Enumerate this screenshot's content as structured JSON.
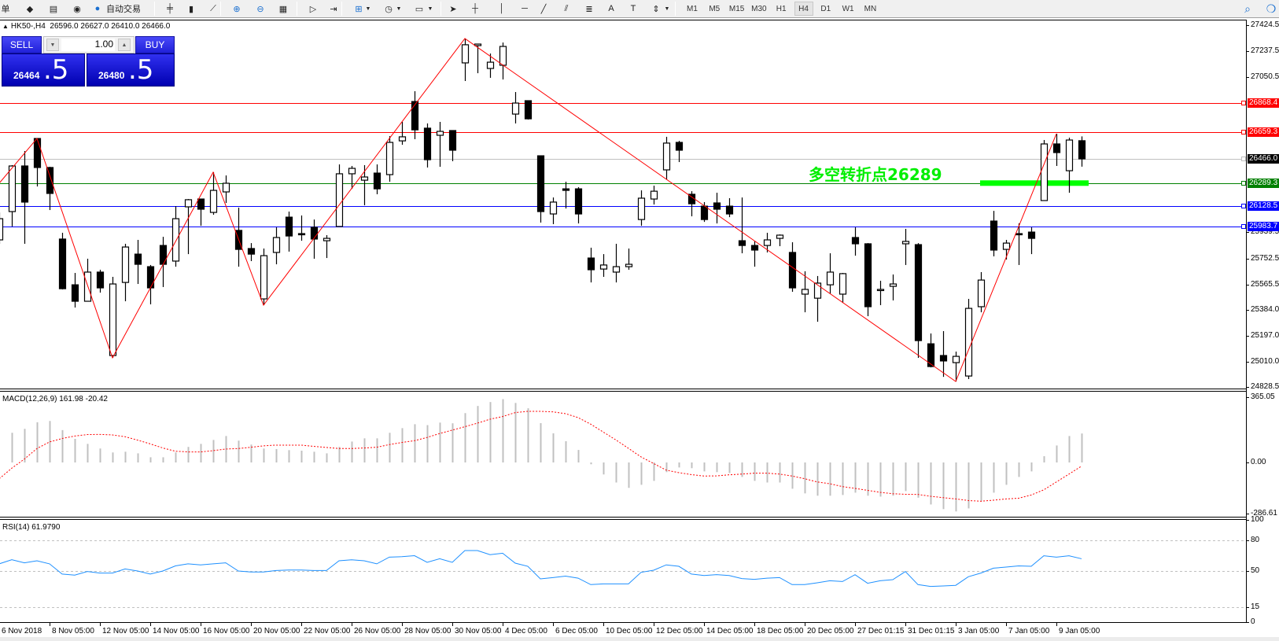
{
  "toolbar": {
    "new_order_label": "单",
    "autotrade_label": "自动交易",
    "timeframes": [
      "M1",
      "M5",
      "M15",
      "M30",
      "H1",
      "H4",
      "D1",
      "W1",
      "MN"
    ],
    "active_timeframe": "H4",
    "icons": [
      "orders-icon",
      "market-watch-icon",
      "navigator-icon",
      "signal-icon",
      "autotrade-icon",
      "bar-chart-icon",
      "candlestick-icon",
      "line-chart-icon",
      "zoom-in-icon",
      "zoom-out-icon",
      "tile-windows-icon",
      "autoscroll-icon",
      "chart-shift-icon",
      "indicators-icon",
      "periods-clock-icon",
      "templates-icon",
      "cursor-icon",
      "crosshair-icon",
      "vertical-line-icon",
      "horizontal-line-icon",
      "trendline-icon",
      "equidistant-channel-icon",
      "fibonacci-icon",
      "text-icon",
      "text-label-icon",
      "arrows-icon",
      "search-icon",
      "chat-icon"
    ]
  },
  "chart_header": {
    "symbol": "HK50-,H4",
    "ohlc": "26596.0 26627.0 26410.0 26466.0"
  },
  "trade_panel": {
    "sell_label": "SELL",
    "buy_label": "BUY",
    "lot": "1.00",
    "sell_price_main": "26464",
    "sell_price_frac": ".5",
    "buy_price_main": "26480",
    "buy_price_frac": ".5",
    "color": "#2020d8"
  },
  "annotation": {
    "text": "多空转折点26289",
    "color": "#00ee00",
    "marker_price": 26289.3,
    "marker_from_index": 78,
    "marker_to_index": 86
  },
  "chart_data": [
    {
      "type": "candlestick",
      "title": "HK50-,H4",
      "ylim": [
        24808,
        27447
      ],
      "y_ticks": [
        "27424.5",
        "27237.5",
        "27050.5",
        "25939.5",
        "25752.5",
        "25565.5",
        "25384.0",
        "25197.0",
        "25010.0",
        "24828.5"
      ],
      "x_tick_labels": [
        {
          "index": 0,
          "label": "6 Nov 2018"
        },
        {
          "index": 4,
          "label": "8 Nov 05:00"
        },
        {
          "index": 8,
          "label": "12 Nov 05:00"
        },
        {
          "index": 12,
          "label": "14 Nov 05:00"
        },
        {
          "index": 16,
          "label": "16 Nov 05:00"
        },
        {
          "index": 20,
          "label": "20 Nov 05:00"
        },
        {
          "index": 24,
          "label": "22 Nov 05:00"
        },
        {
          "index": 28,
          "label": "26 Nov 05:00"
        },
        {
          "index": 32,
          "label": "28 Nov 05:00"
        },
        {
          "index": 36,
          "label": "30 Nov 05:00"
        },
        {
          "index": 40,
          "label": "4 Dec 05:00"
        },
        {
          "index": 44,
          "label": "6 Dec 05:00"
        },
        {
          "index": 48,
          "label": "10 Dec 05:00"
        },
        {
          "index": 52,
          "label": "12 Dec 05:00"
        },
        {
          "index": 56,
          "label": "14 Dec 05:00"
        },
        {
          "index": 60,
          "label": "18 Dec 05:00"
        },
        {
          "index": 64,
          "label": "20 Dec 05:00"
        },
        {
          "index": 68,
          "label": "27 Dec 01:15"
        },
        {
          "index": 72,
          "label": "31 Dec 01:15"
        },
        {
          "index": 76,
          "label": "3 Jan 05:00"
        },
        {
          "index": 80,
          "label": "7 Jan 05:00"
        },
        {
          "index": 84,
          "label": "9 Jan 05:00"
        }
      ],
      "ohlc": [
        [
          25885,
          26082,
          25857,
          26037
        ],
        [
          26088,
          26421,
          25981,
          26415
        ],
        [
          26415,
          26522,
          25857,
          26156
        ],
        [
          26612,
          26612,
          26268,
          26404
        ],
        [
          26404,
          26409,
          26099,
          26218
        ],
        [
          25891,
          25936,
          25530,
          25535
        ],
        [
          25563,
          25648,
          25400,
          25445
        ],
        [
          25445,
          25750,
          25445,
          25654
        ],
        [
          25654,
          25671,
          25507,
          25541
        ],
        [
          25056,
          25620,
          25040,
          25569
        ],
        [
          25580,
          25857,
          25445,
          25834
        ],
        [
          25783,
          25885,
          25569,
          25710
        ],
        [
          25693,
          25705,
          25423,
          25541
        ],
        [
          25845,
          25907,
          25547,
          25710
        ],
        [
          25733,
          26127,
          25693,
          26037
        ],
        [
          26122,
          26178,
          25783,
          26173
        ],
        [
          26178,
          26178,
          25986,
          26105
        ],
        [
          26082,
          26370,
          26065,
          26240
        ],
        [
          26229,
          26347,
          26150,
          26291
        ],
        [
          25953,
          26116,
          25693,
          25817
        ],
        [
          25823,
          25862,
          25733,
          25783
        ],
        [
          25462,
          25823,
          25417,
          25772
        ],
        [
          25795,
          25975,
          25710,
          25902
        ],
        [
          26048,
          26088,
          25801,
          25913
        ],
        [
          25930,
          26060,
          25879,
          25924
        ],
        [
          25975,
          26031,
          25750,
          25891
        ],
        [
          25879,
          25919,
          25755,
          25896
        ],
        [
          25981,
          26426,
          25981,
          26359
        ],
        [
          26359,
          26415,
          26251,
          26398
        ],
        [
          26313,
          26421,
          26133,
          26336
        ],
        [
          26364,
          26426,
          26212,
          26251
        ],
        [
          26353,
          26629,
          26302,
          26584
        ],
        [
          26595,
          26731,
          26567,
          26624
        ],
        [
          26877,
          26951,
          26607,
          26674
        ],
        [
          26686,
          26720,
          26404,
          26460
        ],
        [
          26635,
          26731,
          26409,
          26663
        ],
        [
          26669,
          26669,
          26449,
          26528
        ],
        [
          27154,
          27329,
          27024,
          27284
        ],
        [
          27278,
          27289,
          27080,
          27289
        ],
        [
          27114,
          27221,
          27047,
          27159
        ],
        [
          27137,
          27300,
          27035,
          27272
        ],
        [
          26787,
          26945,
          26720,
          26866
        ],
        [
          26883,
          26883,
          26748,
          26753
        ],
        [
          26488,
          26488,
          26009,
          26088
        ],
        [
          26071,
          26189,
          25998,
          26156
        ],
        [
          26251,
          26302,
          26110,
          26240
        ],
        [
          26251,
          26263,
          26003,
          26071
        ],
        [
          25755,
          25829,
          25580,
          25671
        ],
        [
          25676,
          25783,
          25620,
          25705
        ],
        [
          25654,
          25857,
          25580,
          25693
        ],
        [
          25693,
          25823,
          25671,
          25710
        ],
        [
          26031,
          26240,
          25986,
          26184
        ],
        [
          26178,
          26274,
          26139,
          26234
        ],
        [
          26387,
          26624,
          26319,
          26579
        ],
        [
          26584,
          26595,
          26443,
          26528
        ],
        [
          26212,
          26234,
          26054,
          26144
        ],
        [
          26127,
          26156,
          26014,
          26031
        ],
        [
          26150,
          26223,
          26003,
          26105
        ],
        [
          26127,
          26184,
          26048,
          26071
        ],
        [
          25879,
          26189,
          25789,
          25845
        ],
        [
          25845,
          25874,
          25693,
          25812
        ],
        [
          25845,
          25936,
          25795,
          25885
        ],
        [
          25896,
          25924,
          25840,
          25919
        ],
        [
          25795,
          25868,
          25513,
          25541
        ],
        [
          25496,
          25660,
          25366,
          25530
        ],
        [
          25467,
          25626,
          25298,
          25575
        ],
        [
          25563,
          25789,
          25501,
          25654
        ],
        [
          25496,
          25648,
          25434,
          25643
        ],
        [
          25902,
          25975,
          25772,
          25857
        ],
        [
          25857,
          25862,
          25338,
          25406
        ],
        [
          25530,
          25592,
          25417,
          25530
        ],
        [
          25552,
          25637,
          25451,
          25569
        ],
        [
          25857,
          25964,
          25705,
          25874
        ],
        [
          25851,
          25862,
          25039,
          25163
        ],
        [
          25140,
          25214,
          24971,
          24977
        ],
        [
          25056,
          25231,
          24903,
          25017
        ],
        [
          25005,
          25084,
          24870,
          25050
        ],
        [
          24909,
          25462,
          24887,
          25394
        ],
        [
          25406,
          25654,
          25366,
          25597
        ],
        [
          26020,
          26093,
          25767,
          25812
        ],
        [
          25817,
          25885,
          25744,
          25862
        ],
        [
          25930,
          26003,
          25705,
          25924
        ],
        [
          25941,
          25975,
          25783,
          25896
        ],
        [
          26167,
          26601,
          26167,
          26573
        ],
        [
          26573,
          26646,
          26415,
          26511
        ],
        [
          26381,
          26618,
          26223,
          26601
        ],
        [
          26596,
          26627,
          26410,
          26466
        ]
      ],
      "zigzag": [
        [
          0,
          26291
        ],
        [
          3,
          26612
        ],
        [
          9,
          25040
        ],
        [
          17,
          26370
        ],
        [
          21,
          25417
        ],
        [
          37,
          27329
        ],
        [
          76,
          24870
        ],
        [
          84,
          26646
        ]
      ],
      "zigzag_color": "#ff0000",
      "levels": [
        {
          "price": 26868.4,
          "label": "26868.4",
          "color": "#ff0000"
        },
        {
          "price": 26659.3,
          "label": "26659.3",
          "color": "#ff0000"
        },
        {
          "price": 26466.0,
          "label": "26466.0",
          "color": "#c0c0c0",
          "tag_color": "#000000"
        },
        {
          "price": 26289.3,
          "label": "26289.3",
          "color": "#008000"
        },
        {
          "price": 26128.5,
          "label": "26128.5",
          "color": "#0000ff"
        },
        {
          "price": 25983.7,
          "label": "25983.7",
          "color": "#0000ff"
        }
      ]
    },
    {
      "type": "bar",
      "title": "MACD(12,26,9) 161.98 -20.42",
      "ylim": [
        -308,
        396
      ],
      "y_ticks": [
        "365.05",
        "0.00",
        "-286.61"
      ],
      "y_tick_values": [
        365.05,
        0,
        -286.61
      ],
      "series": [
        {
          "name": "MACD",
          "type": "bar",
          "color": "#c0c0c0",
          "values": [
            null,
            166,
            188,
            225,
            232,
            181,
            132,
            104,
            78,
            56,
            60,
            51,
            29,
            29,
            56,
            87,
            104,
            126,
            148,
            122,
            100,
            78,
            75,
            69,
            66,
            60,
            51,
            87,
            117,
            135,
            135,
            166,
            192,
            214,
            209,
            223,
            219,
            276,
            316,
            338,
            354,
            333,
            303,
            220,
            163,
            119,
            70,
            -10,
            -67,
            -112,
            -142,
            -125,
            -103,
            -54,
            -28,
            -32,
            -50,
            -54,
            -59,
            -81,
            -103,
            -112,
            -112,
            -147,
            -173,
            -186,
            -186,
            -182,
            -169,
            -186,
            -191,
            -186,
            -160,
            -197,
            -235,
            -261,
            -274,
            -257,
            -217,
            -169,
            -125,
            -81,
            -50,
            35,
            95,
            148,
            161.98
          ]
        },
        {
          "name": "Signal",
          "type": "line",
          "color": "#ff0000",
          "values": [
            -91,
            -32,
            19,
            78,
            115,
            134,
            148,
            156,
            157,
            154,
            144,
            125,
            104,
            81,
            63,
            59,
            59,
            66,
            75,
            78,
            85,
            93,
            97,
            97,
            97,
            90,
            84,
            78,
            78,
            81,
            85,
            100,
            112,
            122,
            140,
            162,
            181,
            200,
            220,
            242,
            257,
            279,
            286,
            286,
            283,
            273,
            251,
            214,
            170,
            126,
            79,
            31,
            -6,
            -43,
            -57,
            -68,
            -76,
            -75,
            -69,
            -65,
            -60,
            -60,
            -65,
            -76,
            -91,
            -109,
            -119,
            -135,
            -145,
            -156,
            -167,
            -175,
            -178,
            -179,
            -189,
            -197,
            -204,
            -213,
            -217,
            -211,
            -204,
            -200,
            -182,
            -153,
            -109,
            -65,
            -20.42
          ]
        }
      ]
    },
    {
      "type": "line",
      "title": "RSI(14) 61.9790",
      "ylim": [
        0,
        100
      ],
      "y_ticks": [
        "100",
        "80",
        "50",
        "15",
        "0"
      ],
      "y_tick_values": [
        100,
        80,
        50,
        15,
        0
      ],
      "levels": [
        80,
        50,
        15
      ],
      "series": [
        {
          "name": "RSI(14)",
          "color": "#1e90ff",
          "values": [
            57,
            61,
            58,
            60,
            57,
            47,
            46,
            49.5,
            48,
            48,
            52,
            50,
            47,
            50,
            55,
            57,
            56,
            57,
            58,
            50,
            49,
            49,
            50.5,
            51,
            51,
            50.5,
            50.5,
            60,
            61,
            60,
            57,
            63.6,
            64,
            65,
            58.5,
            62,
            58.5,
            70,
            70,
            66,
            67.4,
            57.7,
            54.6,
            42.3,
            43.6,
            45,
            43,
            36.7,
            37.4,
            37.4,
            37.4,
            48.7,
            50.8,
            56,
            54.6,
            47,
            45.6,
            46.4,
            45.6,
            42.6,
            41.8,
            43,
            43.6,
            36.7,
            36.7,
            38.5,
            40.5,
            39.7,
            46.4,
            38,
            40.5,
            41.5,
            49.5,
            36.7,
            34.9,
            35.4,
            36,
            44.4,
            48,
            52.8,
            53.8,
            55,
            54.6,
            64.9,
            63.6,
            64.9,
            61.979
          ]
        }
      ]
    }
  ]
}
